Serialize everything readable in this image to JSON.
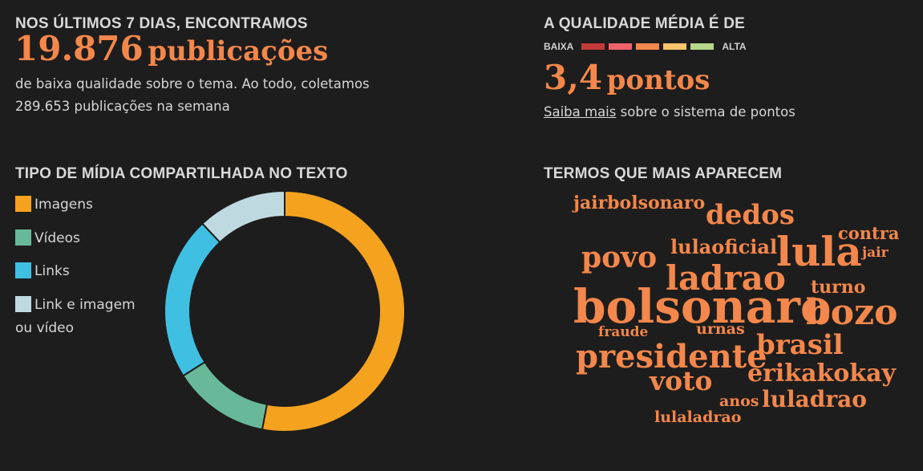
{
  "summary": {
    "header": "NOS ÚLTIMOS 7 DIAS, ENCONTRAMOS",
    "count": "19.876",
    "count_unit": "publicações",
    "description_line1": "de baixa qualidade sobre o tema. Ao todo, coletamos",
    "description_line2": "289.653 publicações na semana"
  },
  "quality": {
    "header": "A QUALIDADE MÉDIA É DE",
    "scale_low": "BAIXA",
    "scale_high": "ALTA",
    "scale_colors": [
      "#c23a3a",
      "#f0626d",
      "#f4874b",
      "#fbc56d",
      "#b5d889"
    ],
    "score": "3,4",
    "score_unit": "pontos",
    "link_text": "Saiba mais",
    "link_suffix": "sobre o sistema de pontos"
  },
  "media": {
    "header": "TIPO DE MÍDIA COMPARTILHADA NO TEXTO"
  },
  "chart_data": {
    "type": "pie",
    "donut": true,
    "categories": [
      "Imagens",
      "Vídeos",
      "Links",
      "Link e imagem ou vídeo"
    ],
    "values": [
      53,
      13,
      22,
      12
    ],
    "colors": [
      "#f5a21e",
      "#68b99a",
      "#3fc0e3",
      "#bfd9e1"
    ],
    "legend": "left"
  },
  "terms": {
    "header": "TERMOS QUE MAIS APARECEM",
    "words": [
      {
        "text": "bolsonaro",
        "size": 58
      },
      {
        "text": "lula",
        "size": 50
      },
      {
        "text": "bozo",
        "size": 44
      },
      {
        "text": "ladrao",
        "size": 42
      },
      {
        "text": "presidente",
        "size": 40
      },
      {
        "text": "povo",
        "size": 36
      },
      {
        "text": "dedos",
        "size": 34
      },
      {
        "text": "brasil",
        "size": 34
      },
      {
        "text": "voto",
        "size": 33
      },
      {
        "text": "erikakokay",
        "size": 30
      },
      {
        "text": "luladrao",
        "size": 28
      },
      {
        "text": "lulaoficial",
        "size": 24
      },
      {
        "text": "jairbolsonaro",
        "size": 22
      },
      {
        "text": "turno",
        "size": 22
      },
      {
        "text": "contra",
        "size": 21
      },
      {
        "text": "urnas",
        "size": 19
      },
      {
        "text": "anos",
        "size": 19
      },
      {
        "text": "lulaladrao",
        "size": 19
      },
      {
        "text": "fraude",
        "size": 17
      },
      {
        "text": "jair",
        "size": 17
      }
    ]
  }
}
